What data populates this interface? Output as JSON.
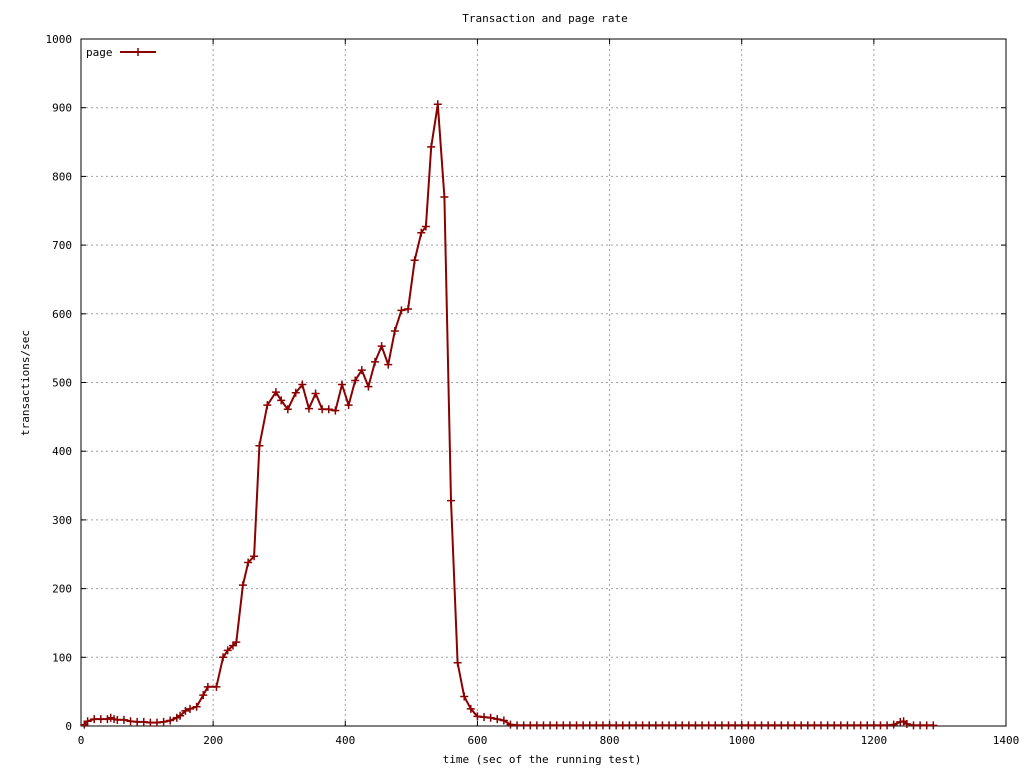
{
  "chart_data": {
    "type": "line",
    "title": "Transaction and page rate",
    "xlabel": "time (sec of the running test)",
    "ylabel": "transactions/sec",
    "xlim": [
      0,
      1400
    ],
    "ylim": [
      0,
      1000
    ],
    "xticks": [
      0,
      200,
      400,
      600,
      800,
      1000,
      1200,
      1400
    ],
    "yticks": [
      0,
      100,
      200,
      300,
      400,
      500,
      600,
      700,
      800,
      900,
      1000
    ],
    "grid": true,
    "legend_position": "top-left",
    "series": [
      {
        "name": "page",
        "color": "#8b0000",
        "marker": "plus",
        "points": [
          [
            5,
            2
          ],
          [
            10,
            7
          ],
          [
            20,
            10
          ],
          [
            30,
            10
          ],
          [
            40,
            10
          ],
          [
            45,
            12
          ],
          [
            50,
            10
          ],
          [
            55,
            9
          ],
          [
            65,
            9
          ],
          [
            75,
            7
          ],
          [
            85,
            6
          ],
          [
            95,
            6
          ],
          [
            105,
            5
          ],
          [
            115,
            5
          ],
          [
            125,
            6
          ],
          [
            135,
            8
          ],
          [
            145,
            12
          ],
          [
            150,
            15
          ],
          [
            158,
            22
          ],
          [
            165,
            25
          ],
          [
            175,
            28
          ],
          [
            185,
            45
          ],
          [
            192,
            57
          ],
          [
            205,
            57
          ],
          [
            215,
            100
          ],
          [
            222,
            110
          ],
          [
            230,
            117
          ],
          [
            235,
            122
          ],
          [
            245,
            205
          ],
          [
            253,
            238
          ],
          [
            262,
            247
          ],
          [
            270,
            408
          ],
          [
            282,
            467
          ],
          [
            295,
            486
          ],
          [
            303,
            474
          ],
          [
            313,
            461
          ],
          [
            325,
            485
          ],
          [
            335,
            497
          ],
          [
            345,
            462
          ],
          [
            355,
            484
          ],
          [
            365,
            461
          ],
          [
            375,
            461
          ],
          [
            385,
            459
          ],
          [
            395,
            497
          ],
          [
            405,
            467
          ],
          [
            415,
            503
          ],
          [
            425,
            518
          ],
          [
            435,
            494
          ],
          [
            445,
            530
          ],
          [
            455,
            553
          ],
          [
            465,
            526
          ],
          [
            475,
            575
          ],
          [
            485,
            605
          ],
          [
            495,
            607
          ],
          [
            505,
            678
          ],
          [
            515,
            718
          ],
          [
            522,
            727
          ],
          [
            530,
            843
          ],
          [
            540,
            905
          ],
          [
            550,
            770
          ],
          [
            560,
            328
          ],
          [
            570,
            92
          ],
          [
            580,
            43
          ],
          [
            590,
            25
          ],
          [
            600,
            14
          ],
          [
            610,
            13
          ],
          [
            620,
            12
          ],
          [
            630,
            10
          ],
          [
            640,
            8
          ],
          [
            650,
            2
          ],
          [
            660,
            1
          ],
          [
            670,
            1
          ],
          [
            680,
            1
          ],
          [
            690,
            1
          ],
          [
            700,
            1
          ],
          [
            710,
            1
          ],
          [
            720,
            1
          ],
          [
            730,
            1
          ],
          [
            740,
            1
          ],
          [
            750,
            1
          ],
          [
            760,
            1
          ],
          [
            770,
            1
          ],
          [
            780,
            1
          ],
          [
            790,
            1
          ],
          [
            800,
            1
          ],
          [
            810,
            1
          ],
          [
            820,
            1
          ],
          [
            830,
            1
          ],
          [
            840,
            1
          ],
          [
            850,
            1
          ],
          [
            860,
            1
          ],
          [
            870,
            1
          ],
          [
            880,
            1
          ],
          [
            890,
            1
          ],
          [
            900,
            1
          ],
          [
            910,
            1
          ],
          [
            920,
            1
          ],
          [
            930,
            1
          ],
          [
            940,
            1
          ],
          [
            950,
            1
          ],
          [
            960,
            1
          ],
          [
            970,
            1
          ],
          [
            980,
            1
          ],
          [
            990,
            1
          ],
          [
            1000,
            1
          ],
          [
            1010,
            1
          ],
          [
            1020,
            1
          ],
          [
            1030,
            1
          ],
          [
            1040,
            1
          ],
          [
            1050,
            1
          ],
          [
            1060,
            1
          ],
          [
            1070,
            1
          ],
          [
            1080,
            1
          ],
          [
            1090,
            1
          ],
          [
            1100,
            1
          ],
          [
            1110,
            1
          ],
          [
            1120,
            1
          ],
          [
            1130,
            1
          ],
          [
            1140,
            1
          ],
          [
            1150,
            1
          ],
          [
            1160,
            1
          ],
          [
            1170,
            1
          ],
          [
            1180,
            1
          ],
          [
            1190,
            1
          ],
          [
            1200,
            1
          ],
          [
            1210,
            1
          ],
          [
            1220,
            1
          ],
          [
            1230,
            2
          ],
          [
            1240,
            6
          ],
          [
            1245,
            7
          ],
          [
            1250,
            3
          ],
          [
            1260,
            1
          ],
          [
            1270,
            1
          ],
          [
            1280,
            1
          ],
          [
            1290,
            1
          ]
        ]
      }
    ]
  }
}
